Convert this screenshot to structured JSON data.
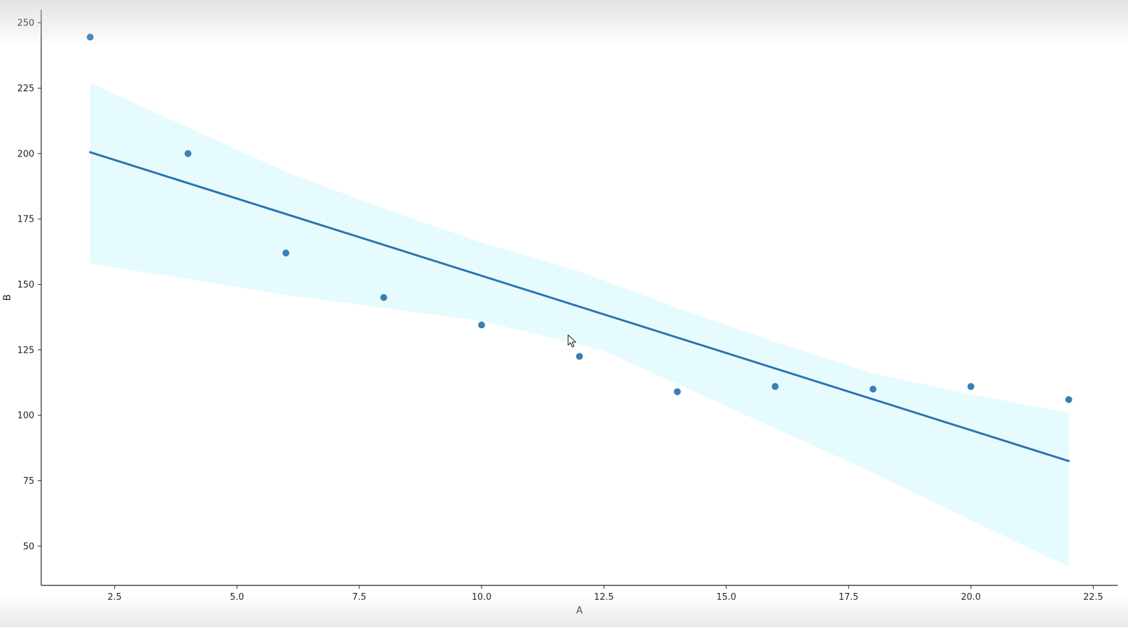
{
  "chart_data": {
    "type": "scatter",
    "xlabel": "A",
    "ylabel": "B",
    "xlim": [
      1.0,
      23.0
    ],
    "ylim": [
      35,
      255
    ],
    "xticks": [
      2.5,
      5.0,
      7.5,
      10.0,
      12.5,
      15.0,
      17.5,
      20.0,
      22.5
    ],
    "xtick_labels": [
      "2.5",
      "5.0",
      "7.5",
      "10.0",
      "12.5",
      "15.0",
      "17.5",
      "20.0",
      "22.5"
    ],
    "yticks": [
      50,
      75,
      100,
      125,
      150,
      175,
      200,
      225,
      250
    ],
    "ytick_labels": [
      "50",
      "75",
      "100",
      "125",
      "150",
      "175",
      "200",
      "225",
      "250"
    ],
    "grid": false,
    "points": {
      "x": [
        2,
        4,
        6,
        8,
        10,
        12,
        14,
        16,
        18,
        20,
        22
      ],
      "y": [
        244.5,
        200,
        162,
        145,
        134.5,
        122.5,
        109,
        111,
        110,
        111,
        106
      ]
    },
    "regression_line": {
      "x": [
        2,
        22
      ],
      "y": [
        200.5,
        82.5
      ]
    },
    "confidence_band": {
      "x": [
        2,
        4,
        6,
        8,
        10,
        12,
        12.5,
        14,
        16,
        18,
        20,
        22
      ],
      "upper": [
        227,
        210,
        193,
        179,
        166,
        155,
        151.5,
        141,
        128,
        116,
        108,
        101
      ],
      "lower": [
        158,
        152,
        146,
        141,
        136,
        127,
        124.5,
        112,
        95,
        78,
        60,
        42
      ]
    },
    "colors": {
      "points": "#3a7fb4",
      "line": "#2a72b0",
      "band": "#e6fbfd",
      "axes": "#222222"
    }
  }
}
